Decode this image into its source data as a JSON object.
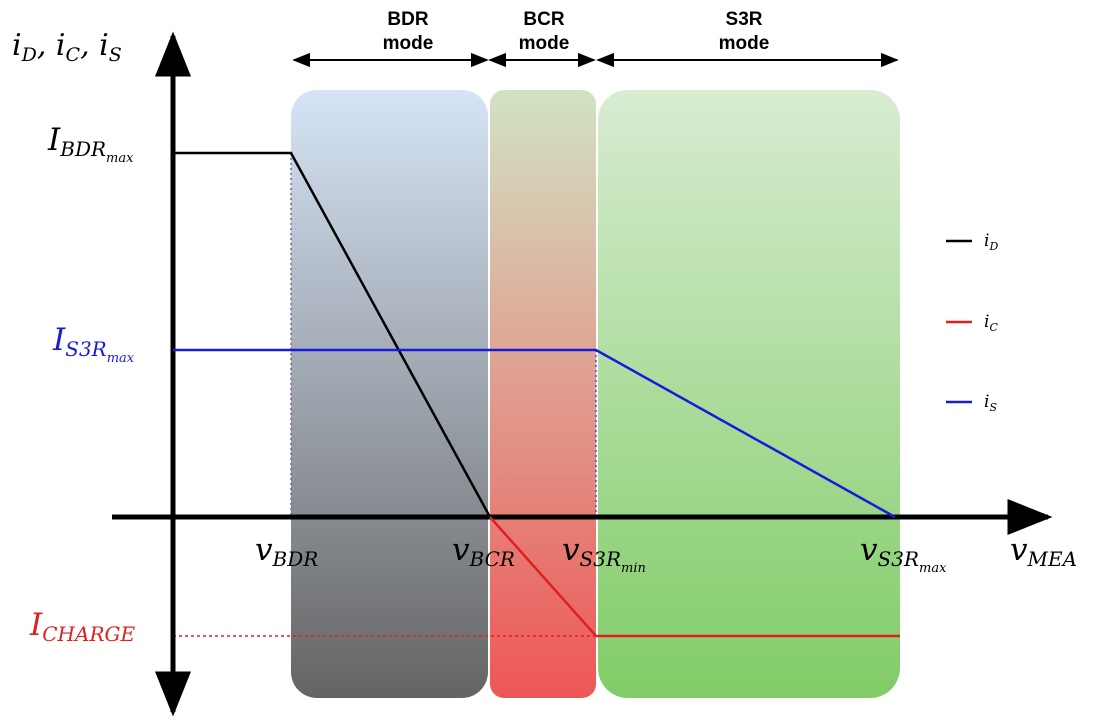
{
  "y_axis_label": {
    "base": "i",
    "sub1": "D",
    "sub2": "C",
    "sub3": "S",
    "sep": ", "
  },
  "x_axis_label": {
    "base": "v",
    "sub": "MEA"
  },
  "modes": [
    {
      "line1": "BDR",
      "line2": "mode"
    },
    {
      "line1": "BCR",
      "line2": "mode"
    },
    {
      "line1": "S3R",
      "line2": "mode"
    }
  ],
  "y_levels": {
    "bdr_max": {
      "base": "I",
      "sub": "BDR",
      "subsub": "max"
    },
    "s3r_max": {
      "base": "I",
      "sub": "S3R",
      "subsub": "max"
    },
    "charge": {
      "base": "I",
      "sub": "CHARGE"
    }
  },
  "x_ticks": {
    "bdr": {
      "base": "v",
      "sub": "BDR"
    },
    "bcr": {
      "base": "v",
      "sub": "BCR"
    },
    "s3r_min": {
      "base": "v",
      "sub": "S3R",
      "subsub": "min"
    },
    "s3r_max": {
      "base": "v",
      "sub": "S3R",
      "subsub": "max"
    }
  },
  "legend": [
    {
      "base": "i",
      "sub": "D",
      "color": "#000000"
    },
    {
      "base": "i",
      "sub": "C",
      "color": "#e02020"
    },
    {
      "base": "i",
      "sub": "S",
      "color": "#1a1adc"
    }
  ],
  "colors": {
    "axis": "#000000",
    "i_D": "#000000",
    "i_C": "#e02020",
    "i_S": "#1a1adc",
    "label_s3r": "#1a1adc",
    "label_charge": "#e02020"
  }
}
